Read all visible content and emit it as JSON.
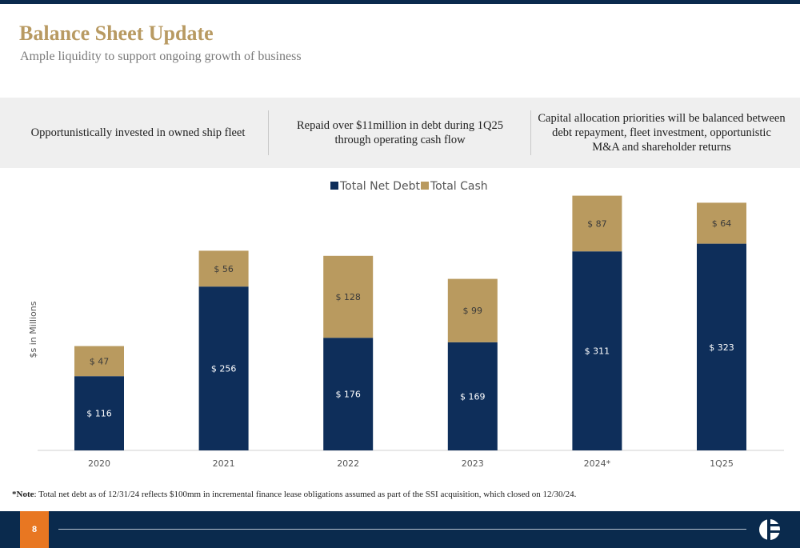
{
  "header": {
    "title": "Balance Sheet Update",
    "subtitle": "Ample liquidity to support ongoing growth of business"
  },
  "callouts": [
    "Opportunistically invested in owned ship fleet",
    "Repaid over $11million in debt during 1Q25 through operating cash flow",
    "Capital allocation priorities will be balanced between debt repayment, fleet investment, opportunistic M&A and shareholder returns"
  ],
  "chart_data": {
    "type": "bar",
    "stacked": true,
    "categories": [
      "2020",
      "2021",
      "2022",
      "2023",
      "2024*",
      "1Q25"
    ],
    "series": [
      {
        "name": "Total Net Debt",
        "values": [
          116,
          256,
          176,
          169,
          311,
          323
        ],
        "labels": [
          "$ 116",
          "$ 256",
          "$ 176",
          "$ 169",
          "$ 311",
          "$ 323"
        ],
        "color": "#0e2e5a"
      },
      {
        "name": "Total Cash",
        "values": [
          47,
          56,
          128,
          99,
          87,
          64
        ],
        "labels": [
          "$ 47",
          "$ 56",
          "$ 128",
          "$ 99",
          "$ 87",
          "$ 64"
        ],
        "color": "#b99a5f"
      }
    ],
    "ylabel": "$s in Millions",
    "ylim": [
      0,
      400
    ],
    "legend": "top-center",
    "grid": false
  },
  "note": {
    "label": "*Note",
    "text": ": Total net debt as of 12/31/24 reflects $100mm in incremental finance lease obligations assumed as part of the SSI acquisition, which closed on 12/30/24."
  },
  "footer": {
    "page_number": "8",
    "logo_icon": "company-logo-icon",
    "accent_color": "#e87722",
    "navy_color": "#0a2a4d"
  }
}
